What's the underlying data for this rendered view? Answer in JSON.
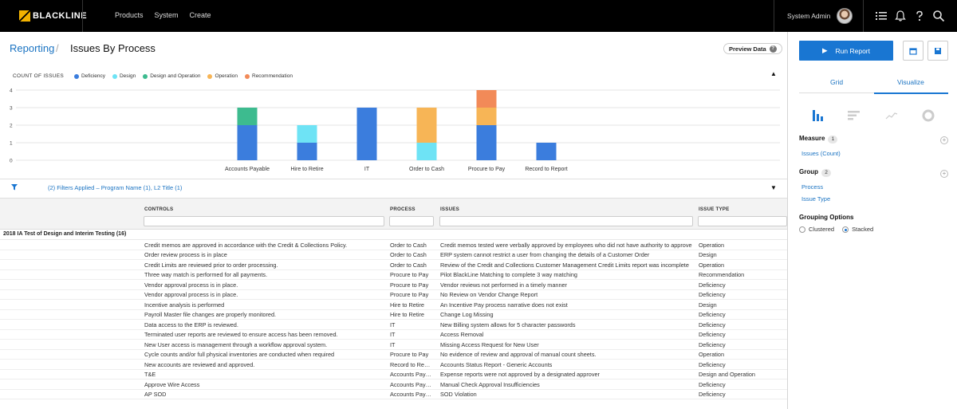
{
  "topbar": {
    "brand": "BLACKLINE",
    "nav": [
      "Products",
      "System",
      "Create"
    ],
    "user": "System Admin"
  },
  "breadcrumb": {
    "parent": "Reporting",
    "separator": "/",
    "title": "Issues By Process"
  },
  "preview_label": "Preview Data",
  "colors": {
    "Deficiency": "#3b7ddd",
    "Design": "#6ee3f5",
    "Design and Operation": "#3dbb8f",
    "Operation": "#f7b556",
    "Recommendation": "#f28a58"
  },
  "chart_data": {
    "type": "bar",
    "stacked": true,
    "title": "COUNT OF ISSUES",
    "categories": [
      "Accounts Payable",
      "Hire to Retire",
      "IT",
      "Order to Cash",
      "Procure to Pay",
      "Record to Report"
    ],
    "series": [
      {
        "name": "Deficiency",
        "values": [
          2,
          1,
          3,
          0,
          2,
          1
        ]
      },
      {
        "name": "Design",
        "values": [
          0,
          1,
          0,
          1,
          0,
          0
        ]
      },
      {
        "name": "Design and Operation",
        "values": [
          1,
          0,
          0,
          0,
          0,
          0
        ]
      },
      {
        "name": "Operation",
        "values": [
          0,
          0,
          0,
          2,
          1,
          0
        ]
      },
      {
        "name": "Recommendation",
        "values": [
          0,
          0,
          0,
          0,
          1,
          0
        ]
      }
    ],
    "yticks": [
      "0",
      "1",
      "2",
      "3",
      "4"
    ],
    "ylim": [
      0,
      4
    ],
    "grid": true,
    "legend": "top-left"
  },
  "filters_text": "(2) Filters Applied – Program Name (1), L2 Title (1)",
  "grid": {
    "headers": {
      "controls": "CONTROLS",
      "process": "PROCESS",
      "issues": "ISSUES",
      "type": "ISSUE TYPE"
    },
    "group_label": "2018 IA Test of Design and Interim Testing (16)",
    "rows": [
      [
        "Credit memos are approved in accordance with the Credit & Collections Policy.",
        "Order to Cash",
        "Credit memos tested were verbally approved by employees who did not have authority to approve",
        "Operation"
      ],
      [
        "Order review process is in place",
        "Order to Cash",
        "ERP system cannot restrict a user from changing the details of a Customer Order",
        "Design"
      ],
      [
        "Credit Limits are reviewed prior to order processing.",
        "Order to Cash",
        "Review of the Credit and Collections Customer Management Credit Limits report was incomplete",
        "Operation"
      ],
      [
        "Three way match is performed for all payments.",
        "Procure to Pay",
        "Pilot BlackLine Matching to complete 3 way matching",
        "Recommendation"
      ],
      [
        "Vendor approval process is in place.",
        "Procure to Pay",
        "Vendor reviews not performed in a timely manner",
        "Deficiency"
      ],
      [
        "Vendor approval process is in place.",
        "Procure to Pay",
        "No Review on Vendor Change Report",
        "Deficiency"
      ],
      [
        "Incentive analysis is performed",
        "Hire to Retire",
        "An Incentive Pay process narrative does not exist",
        "Design"
      ],
      [
        "Payroll Master file changes are properly monitored.",
        "Hire to Retire",
        "Change Log Missing",
        "Deficiency"
      ],
      [
        "Data access to the ERP is reviewed.",
        "IT",
        "New Billing system allows for 5 character passwords",
        "Deficiency"
      ],
      [
        "Terminated user reports are reviewed to ensure access has been removed.",
        "IT",
        "Access Removal",
        "Deficiency"
      ],
      [
        "New User access is management through a workflow approval system.",
        "IT",
        "Missing Access Request for New User",
        "Deficiency"
      ],
      [
        "Cycle counts and/or full physical inventories are conducted when required",
        "Procure to Pay",
        "No evidence of review and approval of manual count sheets.",
        "Operation"
      ],
      [
        "New accounts are reviewed and approved.",
        "Record to Report",
        "Accounts Status Report - Generic Accounts",
        "Deficiency"
      ],
      [
        "T&E",
        "Accounts Payable",
        "Expense reports were not approved by a designated approver",
        "Design and Operation"
      ],
      [
        "Approve Wire Access",
        "Accounts Payable",
        "Manual Check Approval Insufficiencies",
        "Deficiency"
      ],
      [
        "AP SOD",
        "Accounts Payable",
        "SOD Violation",
        "Deficiency"
      ]
    ]
  },
  "panel": {
    "run_label": "Run Report",
    "tabs": [
      "Grid",
      "Visualize"
    ],
    "measure": {
      "title": "Measure",
      "count": "1",
      "items": [
        "Issues (Count)"
      ]
    },
    "group": {
      "title": "Group",
      "count": "2",
      "items": [
        "Process",
        "Issue Type"
      ]
    },
    "grouping": {
      "title": "Grouping Options",
      "options": [
        "Clustered",
        "Stacked"
      ],
      "selected": "Stacked"
    }
  }
}
